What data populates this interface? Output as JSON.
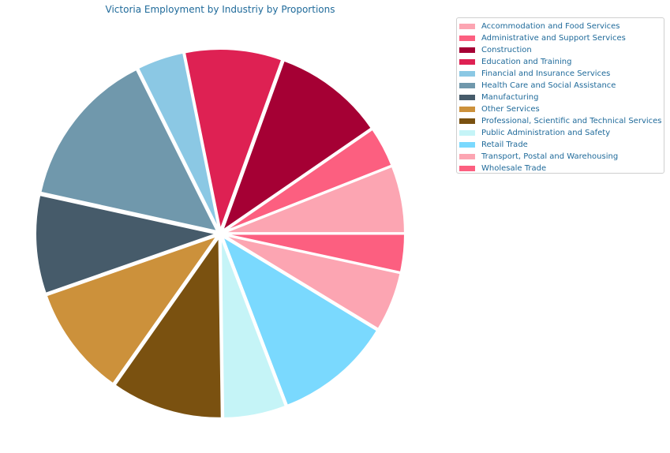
{
  "chart_data": {
    "type": "pie",
    "title": "Victoria Employment by Industriy by Proportions",
    "start_angle_deg": 0,
    "direction": "counterclockwise",
    "legend_position": "top-right",
    "slices": [
      {
        "label": "Accommodation and Food Services",
        "value": 6.0,
        "color": "#fca5b2"
      },
      {
        "label": "Administrative and Support Services",
        "value": 3.6,
        "color": "#fc5f80"
      },
      {
        "label": "Construction",
        "value": 9.9,
        "color": "#a50034"
      },
      {
        "label": "Education and Training",
        "value": 8.7,
        "color": "#de2153"
      },
      {
        "label": "Financial and Insurance Services",
        "value": 4.2,
        "color": "#8bc8e4"
      },
      {
        "label": "Health Care and Social Assistance",
        "value": 14.2,
        "color": "#7098ac"
      },
      {
        "label": "Manufacturing",
        "value": 8.8,
        "color": "#465b6a"
      },
      {
        "label": "Other Services",
        "value": 9.9,
        "color": "#cc913b"
      },
      {
        "label": "Professional, Scientific and Technical Services",
        "value": 10.0,
        "color": "#7a5110"
      },
      {
        "label": "Public Administration and Safety",
        "value": 5.6,
        "color": "#c5f4f7"
      },
      {
        "label": "Retail Trade",
        "value": 10.5,
        "color": "#7ad9fe"
      },
      {
        "label": "Transport, Postal and Warehousing",
        "value": 5.3,
        "color": "#fca5b2"
      },
      {
        "label": "Wholesale Trade",
        "value": 3.4,
        "color": "#fc5f80"
      }
    ]
  }
}
